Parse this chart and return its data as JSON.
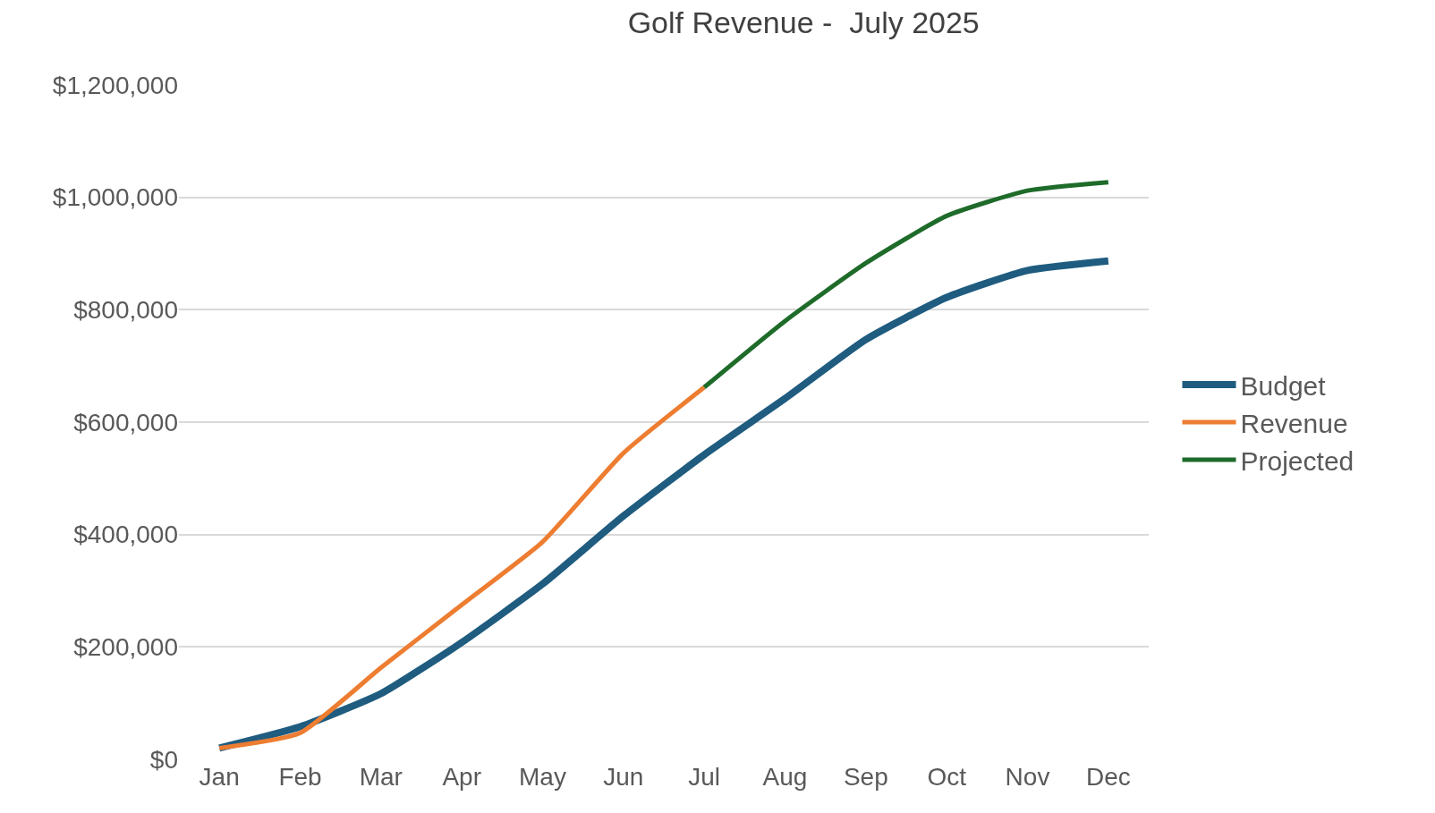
{
  "chart_data": {
    "type": "line",
    "title": "Golf Revenue -  July 2025",
    "categories": [
      "Jan",
      "Feb",
      "Mar",
      "Apr",
      "May",
      "Jun",
      "Jul",
      "Aug",
      "Sep",
      "Oct",
      "Nov",
      "Dec"
    ],
    "series": [
      {
        "name": "Budget",
        "color": "#1f5c7f",
        "values": [
          20000,
          58000,
          117000,
          208000,
          312000,
          433000,
          542000,
          642000,
          747000,
          822000,
          870000,
          887000
        ]
      },
      {
        "name": "Revenue",
        "color": "#ed7d31",
        "values": [
          20000,
          47000,
          163000,
          275000,
          387000,
          545000,
          662000,
          null,
          null,
          null,
          null,
          null
        ]
      },
      {
        "name": "Projected",
        "color": "#1e6b2a",
        "values": [
          null,
          null,
          null,
          null,
          null,
          null,
          662000,
          780000,
          883000,
          967000,
          1012000,
          1027000
        ]
      }
    ],
    "ylim": [
      0,
      1200000
    ],
    "yticks": [
      {
        "value": 0,
        "label": "$0"
      },
      {
        "value": 200000,
        "label": "$200,000"
      },
      {
        "value": 400000,
        "label": "$400,000"
      },
      {
        "value": 600000,
        "label": "$600,000"
      },
      {
        "value": 800000,
        "label": "$800,000"
      },
      {
        "value": 1000000,
        "label": "$1,000,000"
      },
      {
        "value": 1200000,
        "label": "$1,200,000"
      }
    ],
    "grid": "y",
    "legend": "right",
    "marker": "none",
    "line_style": "solid"
  }
}
